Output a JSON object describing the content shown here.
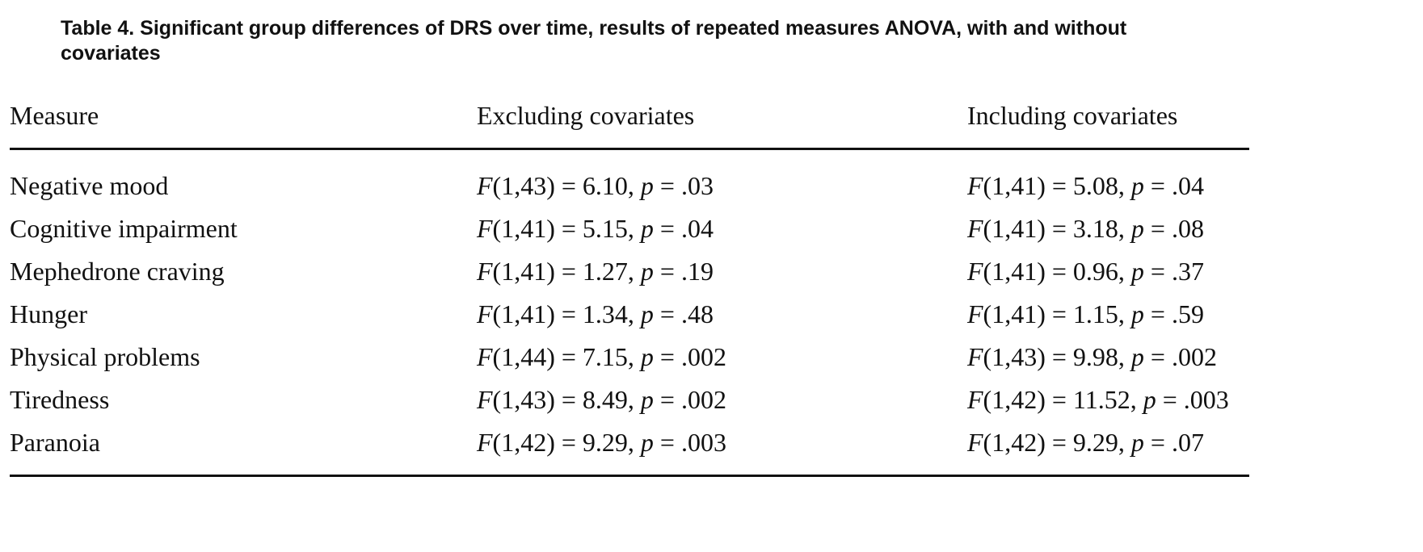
{
  "title": "Table 4. Significant group differences of DRS over time, results of repeated measures ANOVA, with and without covariates",
  "table": {
    "header": [
      "Measure",
      "Excluding covariates",
      "Including covariates"
    ],
    "rows": [
      [
        "Negative mood",
        "F(1,43) = 6.10, p = .03",
        "F(1,41) = 5.08, p = .04"
      ],
      [
        "Cognitive impairment",
        "F(1,41) = 5.15, p = .04",
        "F(1,41) = 3.18, p = .08"
      ],
      [
        "Mephedrone craving",
        "F(1,41) = 1.27, p = .19",
        "F(1,41) = 0.96, p = .37"
      ],
      [
        "Hunger",
        "F(1,41) = 1.34, p = .48",
        "F(1,41) = 1.15, p = .59"
      ],
      [
        "Physical problems",
        "F(1,44) = 7.15, p = .002",
        "F(1,43) = 9.98, p = .002"
      ],
      [
        "Tiredness",
        "F(1,43) = 8.49, p = .002",
        "F(1,42) = 11.52, p = .003"
      ],
      [
        "Paranoia",
        "F(1,42) = 9.29, p = .003",
        "F(1,42) = 9.29, p = .07"
      ]
    ]
  }
}
